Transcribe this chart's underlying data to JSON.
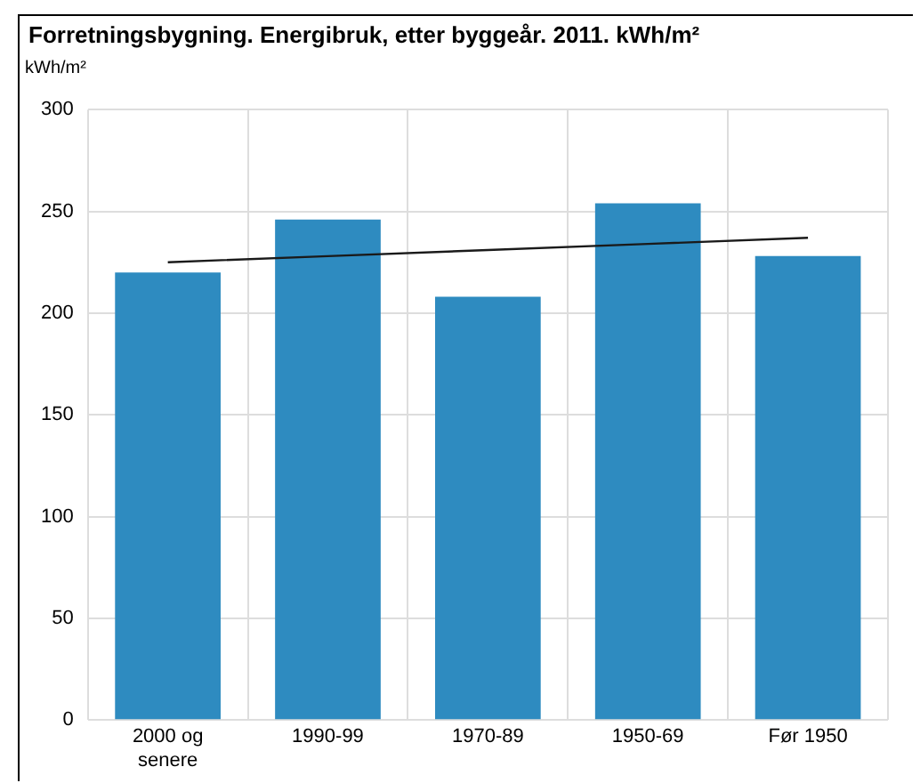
{
  "chart_data": {
    "type": "bar",
    "title": "Forretningsbygning. Energibruk, etter byggeår. 2011. kWh/m²",
    "ylabel": "kWh/m²",
    "categories": [
      "2000 og senere",
      "1990-99",
      "1970-89",
      "1950-69",
      "Før 1950"
    ],
    "series": [
      {
        "color": "#2e8bc0",
        "values": [
          220,
          246,
          208,
          254,
          228
        ]
      },
      {
        "type": "line",
        "color": "#1a1a1a",
        "x": [
          "2000 og senere",
          "1990-99",
          "1970-89",
          "1950-69",
          "Før 1950"
        ],
        "values": [
          225,
          228,
          231,
          234,
          237
        ]
      }
    ],
    "ylim": [
      0,
      300
    ],
    "yticks": [
      0,
      50,
      100,
      150,
      200,
      250,
      300
    ],
    "grid": true,
    "legend": false,
    "marker": "none"
  }
}
